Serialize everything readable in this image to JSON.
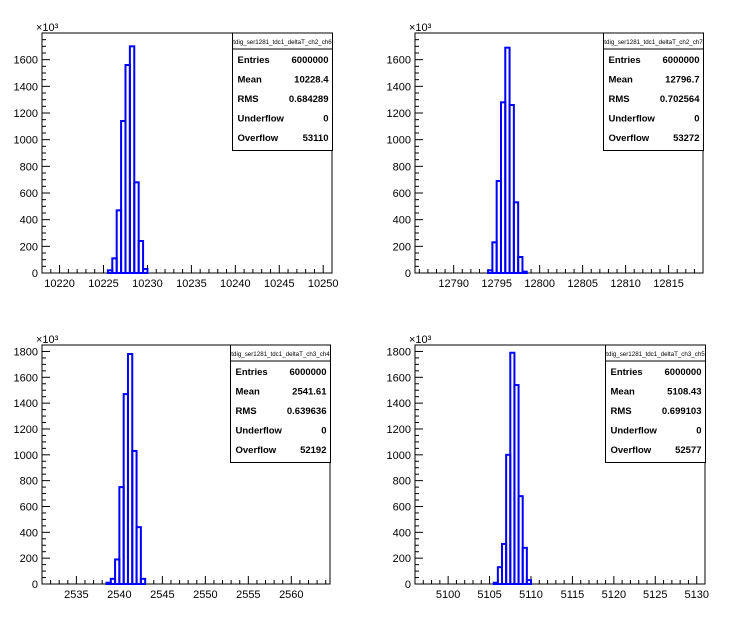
{
  "chart_data": [
    {
      "type": "bar",
      "title": "tdig_ser1281_tdc1_deltaT_ch2_ch6",
      "ylabel_multiplier": "×10³",
      "xlim": [
        10218.0,
        10251.0
      ],
      "ylim": [
        0,
        1800
      ],
      "xticks": [
        10220,
        10225,
        10230,
        10235,
        10240,
        10245,
        10250
      ],
      "yticks": [
        0,
        200,
        400,
        600,
        800,
        1000,
        1200,
        1400,
        1600
      ],
      "bins": [
        {
          "x0": 10225.5,
          "x1": 10226.0,
          "y": 20
        },
        {
          "x0": 10226.0,
          "x1": 10226.5,
          "y": 110
        },
        {
          "x0": 10226.5,
          "x1": 10227.0,
          "y": 470
        },
        {
          "x0": 10227.0,
          "x1": 10227.5,
          "y": 1140
        },
        {
          "x0": 10227.5,
          "x1": 10228.0,
          "y": 1560
        },
        {
          "x0": 10228.0,
          "x1": 10228.5,
          "y": 1700
        },
        {
          "x0": 10228.5,
          "x1": 10229.0,
          "y": 680
        },
        {
          "x0": 10229.0,
          "x1": 10229.5,
          "y": 240
        },
        {
          "x0": 10229.5,
          "x1": 10230.0,
          "y": 30
        }
      ],
      "stats": [
        {
          "label": "Entries",
          "value": "6000000"
        },
        {
          "label": "Mean",
          "value": "10228.4"
        },
        {
          "label": "RMS",
          "value": "0.684289"
        },
        {
          "label": "Underflow",
          "value": "0"
        },
        {
          "label": "Overflow",
          "value": "53110"
        }
      ],
      "line_color": "#0000ff"
    },
    {
      "type": "bar",
      "title": "tdig_ser1281_tdc1_deltaT_ch2_ch7",
      "ylabel_multiplier": "×10³",
      "xlim": [
        12785.5,
        12819.0
      ],
      "ylim": [
        0,
        1800
      ],
      "xticks": [
        12790,
        12795,
        12800,
        12805,
        12810,
        12815
      ],
      "yticks": [
        0,
        200,
        400,
        600,
        800,
        1000,
        1200,
        1400,
        1600
      ],
      "bins": [
        {
          "x0": 12794.0,
          "x1": 12794.5,
          "y": 20
        },
        {
          "x0": 12794.5,
          "x1": 12795.0,
          "y": 230
        },
        {
          "x0": 12795.0,
          "x1": 12795.5,
          "y": 690
        },
        {
          "x0": 12795.5,
          "x1": 12796.0,
          "y": 1280
        },
        {
          "x0": 12796.0,
          "x1": 12796.5,
          "y": 1690
        },
        {
          "x0": 12796.5,
          "x1": 12797.0,
          "y": 1260
        },
        {
          "x0": 12797.0,
          "x1": 12797.5,
          "y": 530
        },
        {
          "x0": 12797.5,
          "x1": 12798.0,
          "y": 120
        },
        {
          "x0": 12798.0,
          "x1": 12798.5,
          "y": 10
        }
      ],
      "stats": [
        {
          "label": "Entries",
          "value": "6000000"
        },
        {
          "label": "Mean",
          "value": "12796.7"
        },
        {
          "label": "RMS",
          "value": "0.702564"
        },
        {
          "label": "Underflow",
          "value": "0"
        },
        {
          "label": "Overflow",
          "value": "53272"
        }
      ],
      "line_color": "#0000ff"
    },
    {
      "type": "bar",
      "title": "tdig_ser1281_tdc1_deltaT_ch3_ch4",
      "ylabel_multiplier": "×10³",
      "xlim": [
        2531.0,
        2564.5
      ],
      "ylim": [
        0,
        1850
      ],
      "xticks": [
        2535,
        2540,
        2545,
        2550,
        2555,
        2560
      ],
      "yticks": [
        0,
        200,
        400,
        600,
        800,
        1000,
        1200,
        1400,
        1600,
        1800
      ],
      "bins": [
        {
          "x0": 2538.5,
          "x1": 2539.0,
          "y": 10
        },
        {
          "x0": 2539.0,
          "x1": 2539.5,
          "y": 40
        },
        {
          "x0": 2539.5,
          "x1": 2540.0,
          "y": 190
        },
        {
          "x0": 2540.0,
          "x1": 2540.5,
          "y": 750
        },
        {
          "x0": 2540.5,
          "x1": 2541.0,
          "y": 1470
        },
        {
          "x0": 2541.0,
          "x1": 2541.5,
          "y": 1780
        },
        {
          "x0": 2541.5,
          "x1": 2542.0,
          "y": 1030
        },
        {
          "x0": 2542.0,
          "x1": 2542.5,
          "y": 440
        },
        {
          "x0": 2542.5,
          "x1": 2543.0,
          "y": 40
        }
      ],
      "stats": [
        {
          "label": "Entries",
          "value": "6000000"
        },
        {
          "label": "Mean",
          "value": "2541.61"
        },
        {
          "label": "RMS",
          "value": "0.639636"
        },
        {
          "label": "Underflow",
          "value": "0"
        },
        {
          "label": "Overflow",
          "value": "52192"
        }
      ],
      "line_color": "#0000ff"
    },
    {
      "type": "bar",
      "title": "tdig_ser1281_tdc1_deltaT_ch3_ch5",
      "ylabel_multiplier": "×10³",
      "xlim": [
        5096.0,
        5131.0
      ],
      "ylim": [
        0,
        1850
      ],
      "xticks": [
        5100,
        5105,
        5110,
        5115,
        5120,
        5125,
        5130
      ],
      "yticks": [
        0,
        200,
        400,
        600,
        800,
        1000,
        1200,
        1400,
        1600,
        1800
      ],
      "bins": [
        {
          "x0": 5105.5,
          "x1": 5106.0,
          "y": 10
        },
        {
          "x0": 5106.0,
          "x1": 5106.5,
          "y": 130
        },
        {
          "x0": 5106.5,
          "x1": 5107.0,
          "y": 310
        },
        {
          "x0": 5107.0,
          "x1": 5107.5,
          "y": 1000
        },
        {
          "x0": 5107.5,
          "x1": 5108.0,
          "y": 1790
        },
        {
          "x0": 5108.0,
          "x1": 5108.5,
          "y": 1540
        },
        {
          "x0": 5108.5,
          "x1": 5109.0,
          "y": 680
        },
        {
          "x0": 5109.0,
          "x1": 5109.5,
          "y": 280
        },
        {
          "x0": 5109.5,
          "x1": 5110.0,
          "y": 30
        }
      ],
      "stats": [
        {
          "label": "Entries",
          "value": "6000000"
        },
        {
          "label": "Mean",
          "value": "5108.43"
        },
        {
          "label": "RMS",
          "value": "0.699103"
        },
        {
          "label": "Underflow",
          "value": "0"
        },
        {
          "label": "Overflow",
          "value": "52577"
        }
      ],
      "line_color": "#0000ff"
    }
  ]
}
